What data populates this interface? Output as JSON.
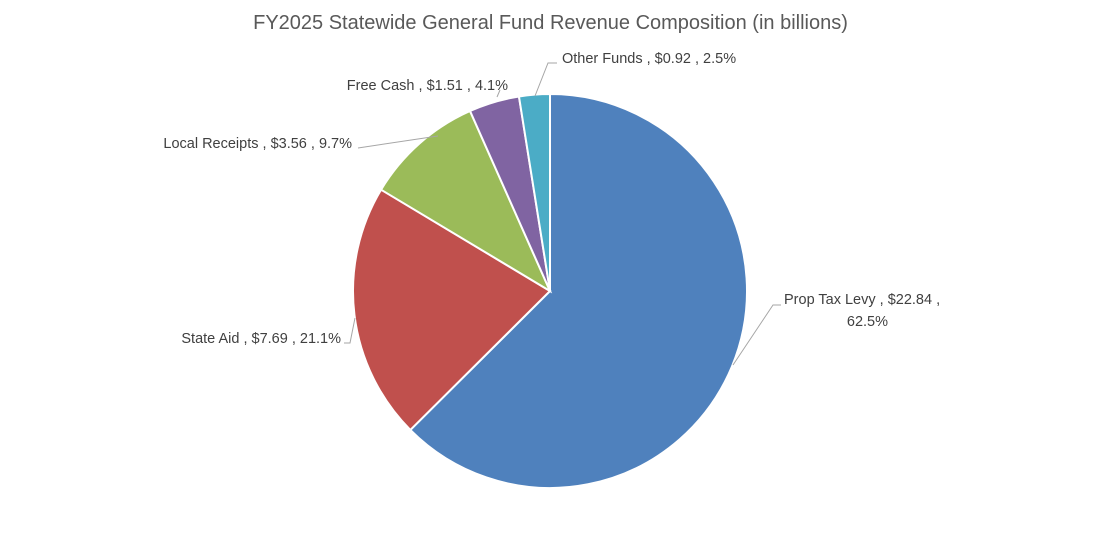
{
  "chart_data": {
    "type": "pie",
    "title": "FY2025 Statewide General Fund Revenue Composition (in billions)",
    "start_angle": "12 o'clock, clockwise",
    "slices": [
      {
        "name": "Prop Tax Levy",
        "value": 22.84,
        "value_label": "$22.84",
        "percent_label": "62.5%",
        "color": "#4F81BD"
      },
      {
        "name": "State Aid",
        "value": 7.69,
        "value_label": "$7.69",
        "percent_label": "21.1%",
        "color": "#C0504D"
      },
      {
        "name": "Local Receipts",
        "value": 3.56,
        "value_label": "$3.56",
        "percent_label": "9.7%",
        "color": "#9BBB59"
      },
      {
        "name": "Free Cash",
        "value": 1.51,
        "value_label": "$1.51",
        "percent_label": "4.1%",
        "color": "#8064A2"
      },
      {
        "name": "Other Funds",
        "value": 0.92,
        "value_label": "$0.92",
        "percent_label": "2.5%",
        "color": "#4BACC6"
      }
    ]
  }
}
